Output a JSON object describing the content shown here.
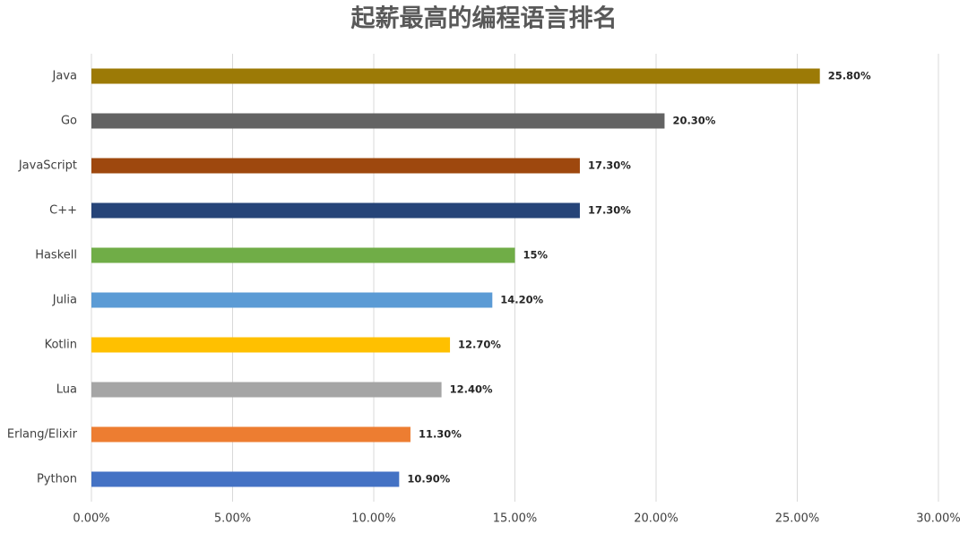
{
  "chart_data": {
    "type": "barh",
    "title": "起薪最高的编程语言排名",
    "categories": [
      "Java",
      "Go",
      "JavaScript",
      "C++",
      "Haskell",
      "Julia",
      "Kotlin",
      "Lua",
      "Erlang/Elixir",
      "Python"
    ],
    "values": [
      25.8,
      20.3,
      17.3,
      17.3,
      15,
      14.2,
      12.7,
      12.4,
      11.3,
      10.9
    ],
    "value_labels": [
      "25.80%",
      "20.30%",
      "17.30%",
      "17.30%",
      "15%",
      "14.20%",
      "12.70%",
      "12.40%",
      "11.30%",
      "10.90%"
    ],
    "colors": [
      "#9c7a06",
      "#636363",
      "#9e480e",
      "#264478",
      "#70ad47",
      "#5b9bd5",
      "#ffc000",
      "#a5a5a5",
      "#ed7d31",
      "#4472c4"
    ],
    "xlim": [
      0,
      30
    ],
    "xticks": [
      {
        "value": 0,
        "label": "0.00%"
      },
      {
        "value": 5,
        "label": "5.00%"
      },
      {
        "value": 10,
        "label": "10.00%"
      },
      {
        "value": 15,
        "label": "15.00%"
      },
      {
        "value": 20,
        "label": "20.00%"
      },
      {
        "value": 25,
        "label": "25.00%"
      },
      {
        "value": 30,
        "label": "30.00%"
      }
    ],
    "grid": true
  }
}
